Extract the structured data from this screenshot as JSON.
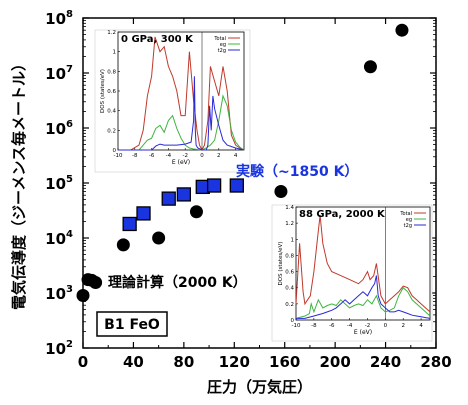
{
  "chart_data": {
    "type": "scatter",
    "xlabel": "圧力（万気圧）",
    "ylabel": "電気伝導度（ジーメンス毎メートル）",
    "x_ticks": [
      "0",
      "40",
      "80",
      "120",
      "160",
      "200",
      "240",
      "280"
    ],
    "y_ticks": [
      {
        "base": "10",
        "exp": "2",
        "value": 100
      },
      {
        "base": "10",
        "exp": "3",
        "value": 1000
      },
      {
        "base": "10",
        "exp": "4",
        "value": 10000
      },
      {
        "base": "10",
        "exp": "5",
        "value": 100000
      },
      {
        "base": "10",
        "exp": "6",
        "value": 1000000
      },
      {
        "base": "10",
        "exp": "7",
        "value": 10000000
      },
      {
        "base": "10",
        "exp": "8",
        "value": 100000000
      }
    ],
    "xlim": [
      0,
      280
    ],
    "ylim": [
      100,
      100000000
    ],
    "y_scale": "log",
    "series": [
      {
        "name": "理論計算（2000 K）",
        "marker": "circle",
        "color": "#000000",
        "x": [
          0,
          4,
          7,
          10,
          32,
          60,
          90,
          157,
          228,
          253
        ],
        "y": [
          900,
          1750,
          1700,
          1550,
          7500,
          10000,
          30000,
          70000,
          13000000,
          60000000
        ]
      },
      {
        "name": "実験（~1850 K）",
        "marker": "square",
        "color": "#1a35e0",
        "x": [
          37,
          48,
          68,
          80,
          95,
          104,
          122
        ],
        "y": [
          18000,
          28000,
          52000,
          62000,
          85000,
          90000,
          90000
        ]
      }
    ],
    "annotations": {
      "theory_label": "理論計算（2000 K）",
      "experiment_label": "実験（~1850 K）",
      "sample_label": "B1 FeO"
    },
    "insets": [
      {
        "title": "0 GPa, 300 K",
        "xlabel": "E (eV)",
        "ylabel": "DOS (states/eV)",
        "x_ticks": [
          "-10",
          "-8",
          "-6",
          "-4",
          "-2",
          "0",
          "2",
          "4"
        ],
        "y_ticks": [
          "0",
          "0.2",
          "0.4",
          "0.6",
          "0.8",
          "1",
          "1.2"
        ],
        "xlim": [
          -10,
          5
        ],
        "ylim": [
          0,
          1.2
        ],
        "legend": [
          "Total",
          "eg",
          "t2g"
        ],
        "series_colors": [
          "#c0392b",
          "#3fb53f",
          "#2929d6"
        ],
        "series": [
          {
            "name": "Total",
            "x": [
              -10,
              -8.5,
              -7.5,
              -7,
              -6.5,
              -6,
              -5.6,
              -5,
              -4.5,
              -4,
              -3.5,
              -3,
              -2.5,
              -2,
              -1.5,
              -1,
              -0.6,
              -0.3,
              0,
              0.3,
              0.7,
              1,
              1.5,
              2,
              2.5,
              3,
              3.5,
              4,
              4.5,
              5
            ],
            "y": [
              0,
              0,
              0.05,
              0.2,
              0.55,
              0.75,
              1.15,
              1.0,
              1.05,
              0.85,
              0.75,
              0.6,
              0.35,
              0.35,
              1.0,
              0.5,
              0.2,
              0.05,
              0,
              0.05,
              0.3,
              0.85,
              0.7,
              0.55,
              0.85,
              0.6,
              0.15,
              0.05,
              0.02,
              0
            ]
          },
          {
            "name": "eg",
            "x": [
              -10,
              -7.5,
              -7,
              -6.5,
              -6,
              -5.5,
              -5,
              -4.5,
              -4,
              -3.5,
              -3,
              -2.5,
              -2,
              -1.5,
              -1,
              0,
              0.5,
              1,
              1.5,
              2,
              2.5,
              3,
              3.5,
              4,
              4.5,
              5
            ],
            "y": [
              0,
              0,
              0.05,
              0.1,
              0.12,
              0.22,
              0.25,
              0.18,
              0.3,
              0.35,
              0.22,
              0.12,
              0.05,
              0.02,
              0.01,
              0,
              0.02,
              0.05,
              0.1,
              0.3,
              0.55,
              0.45,
              0.2,
              0.08,
              0.03,
              0
            ]
          },
          {
            "name": "t2g",
            "x": [
              -10,
              -6,
              -5.5,
              -5,
              -4.5,
              -4,
              -3,
              -2,
              -1.3,
              -1,
              -0.9,
              -0.8,
              -0.7,
              -0.5,
              0,
              0.5,
              0.7,
              0.9,
              1.1,
              1.3,
              1.5,
              2,
              2.5,
              3,
              4,
              5
            ],
            "y": [
              0,
              0,
              0.04,
              0.06,
              0.05,
              0.05,
              0.05,
              0.06,
              0.08,
              0.3,
              0.75,
              0.2,
              0.05,
              0.02,
              0,
              0,
              0.05,
              0.45,
              0.2,
              0.55,
              0.42,
              0.25,
              0.1,
              0.05,
              0.02,
              0
            ]
          }
        ]
      },
      {
        "title": "88 GPa, 2000 K",
        "xlabel": "E (eV)",
        "ylabel": "DOS (states/eV)",
        "x_ticks": [
          "-10",
          "-8",
          "-6",
          "-4",
          "-2",
          "0",
          "2",
          "4"
        ],
        "y_ticks": [
          "0",
          "0.2",
          "0.4",
          "0.6",
          "0.8",
          "1",
          "1.2",
          "1.4"
        ],
        "xlim": [
          -10,
          5
        ],
        "ylim": [
          0,
          1.4
        ],
        "legend": [
          "Total",
          "eg",
          "t2g"
        ],
        "series_colors": [
          "#c0392b",
          "#3fb53f",
          "#2929d6"
        ],
        "series": [
          {
            "name": "Total",
            "x": [
              -10,
              -9.6,
              -9.2,
              -9,
              -8.7,
              -8.4,
              -8,
              -7.6,
              -7.3,
              -7,
              -6.5,
              -6,
              -5,
              -4,
              -3,
              -2.5,
              -2,
              -1.7,
              -1.3,
              -1,
              -0.5,
              0,
              0.5,
              1,
              1.5,
              2,
              2.5,
              3,
              3.5,
              4,
              4.5,
              5
            ],
            "y": [
              0.2,
              0.95,
              0.35,
              0.2,
              0.25,
              0.3,
              0.6,
              1.0,
              1.3,
              0.95,
              0.7,
              0.6,
              0.55,
              0.5,
              0.45,
              0.5,
              0.6,
              0.5,
              0.55,
              0.7,
              0.3,
              0.2,
              0.25,
              0.3,
              0.35,
              0.42,
              0.4,
              0.3,
              0.25,
              0.2,
              0.15,
              0.1
            ]
          },
          {
            "name": "eg",
            "x": [
              -10,
              -9,
              -8.5,
              -8.3,
              -8,
              -7.5,
              -7,
              -6.5,
              -6,
              -5.5,
              -5,
              -4.5,
              -4,
              -3.5,
              -3,
              -2.5,
              -2,
              -1.5,
              -1,
              -0.5,
              0,
              0.5,
              1,
              1.5,
              2,
              2.5,
              3,
              3.5,
              4,
              4.5,
              5
            ],
            "y": [
              0.02,
              0.05,
              0.08,
              0.2,
              0.1,
              0.25,
              0.15,
              0.18,
              0.2,
              0.18,
              0.25,
              0.2,
              0.15,
              0.18,
              0.2,
              0.18,
              0.25,
              0.2,
              0.3,
              0.15,
              0.1,
              0.12,
              0.15,
              0.3,
              0.4,
              0.35,
              0.25,
              0.2,
              0.15,
              0.1,
              0.05
            ]
          },
          {
            "name": "t2g",
            "x": [
              -10,
              -9,
              -8,
              -7,
              -6.5,
              -6,
              -5.5,
              -5,
              -4.5,
              -4,
              -3.5,
              -3,
              -2.5,
              -2,
              -1.5,
              -1.2,
              -1,
              -0.8,
              -0.5,
              0,
              0.5,
              1,
              1.5,
              2,
              2.5,
              3,
              3.5,
              4,
              4.5,
              5
            ],
            "y": [
              0.02,
              0.02,
              0.05,
              0.08,
              0.1,
              0.12,
              0.15,
              0.2,
              0.25,
              0.2,
              0.25,
              0.3,
              0.35,
              0.3,
              0.4,
              0.45,
              0.55,
              0.3,
              0.2,
              0.15,
              0.1,
              0.1,
              0.12,
              0.1,
              0.08,
              0.06,
              0.05,
              0.04,
              0.03,
              0.02
            ]
          }
        ]
      }
    ]
  }
}
